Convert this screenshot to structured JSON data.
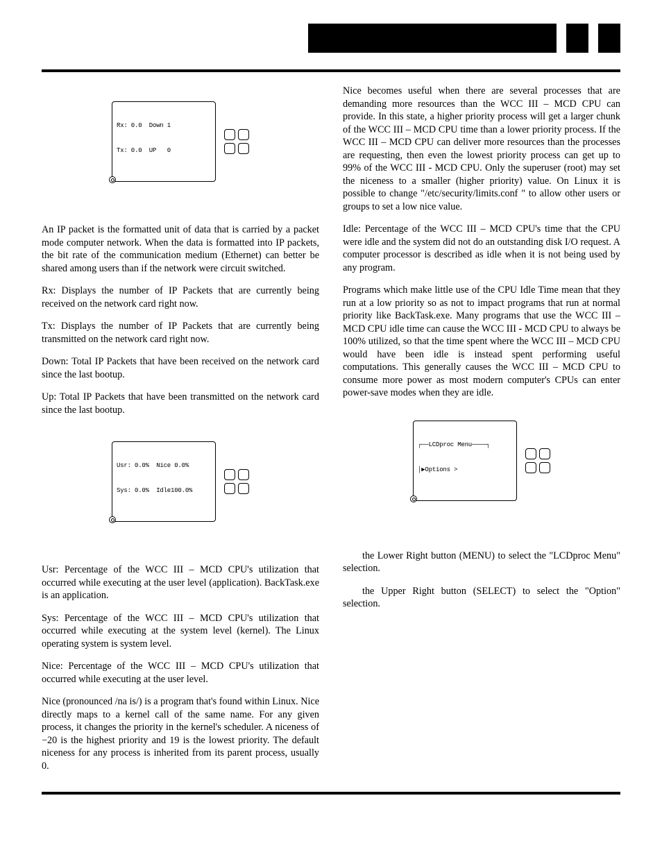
{
  "lcd1": {
    "row1": "Rx: 0.0  Down 1",
    "row2": "Tx: 0.0  UP   0"
  },
  "lcd2": {
    "row1": "Usr: 0.0%  Nice 0.0%",
    "row2": "Sys: 0.0%  Idle100.0%"
  },
  "lcd3": {
    "row1": "┌──LCDproc Menu────┐",
    "row2": "│▶Options >"
  },
  "left": {
    "p1": "An IP packet is the formatted unit of data that is carried by a packet mode computer network. When the data is formatted into IP packets, the bit rate of the communication medium (Ethernet) can better be shared among users than if the network were circuit switched.",
    "p2": "Rx: Displays the number of IP Packets that are currently being received on the network card right now.",
    "p3": "Tx: Displays the number of IP Packets that are currently being transmitted on the network card right now.",
    "p4": "Down: Total IP Packets that have been received on the network card since the last bootup.",
    "p5": "Up: Total IP Packets that have been transmitted on the network card since the last bootup.",
    "p6": "Usr: Percentage of the WCC III – MCD CPU's utilization that occurred while executing at the user level (application). BackTask.exe is an application.",
    "p7": "Sys: Percentage of the WCC III – MCD CPU's utilization that occurred while executing at the system level (kernel). The Linux operating system is system level.",
    "p8": "Nice: Percentage of the WCC III – MCD CPU's utilization that occurred while executing at the user level.",
    "p9": "Nice (pronounced /na is/) is a program that's found within Linux. Nice directly maps to a kernel call of the same name. For any given process, it changes the priority in the kernel's scheduler. A niceness of −20 is the highest priority and 19 is the lowest priority. The default niceness for any process is inherited from its parent process, usually 0."
  },
  "right": {
    "p1": "Nice becomes useful when there are several processes that are demanding more resources than the WCC III – MCD CPU can provide. In this state, a higher priority process will get a larger chunk of the WCC III – MCD CPU time than a lower priority process. If the WCC III – MCD CPU can deliver more resources than the processes are requesting, then even the lowest priority process can get up to 99% of the WCC III - MCD CPU. Only the superuser (root) may set the niceness to a smaller (higher priority) value. On Linux it is possible to change \"/etc/security/limits.conf \" to allow other users or groups to set a low nice value.",
    "p2": "Idle: Percentage of the WCC III – MCD CPU's time that the CPU were idle and the system did not do an outstanding disk I/O request. A computer processor is described as idle when it is not being used by any program.",
    "p3": "Programs which make little use of the CPU Idle Time mean that they run at a low priority so as not to impact programs that run at normal priority like BackTask.exe. Many programs that use the WCC III – MCD CPU idle time can cause the WCC III - MCD CPU to always be 100% utilized, so that the time spent where the WCC III – MCD CPU would have been idle is instead spent performing useful computations. This generally causes the WCC III – MCD CPU to consume more power as most modern computer's CPUs can enter power-save modes when they are idle.",
    "p4": "the Lower Right button (MENU) to select the \"LCDproc Menu\" selection.",
    "p5": "the Upper Right button (SELECT) to select the \"Option\" selection."
  }
}
